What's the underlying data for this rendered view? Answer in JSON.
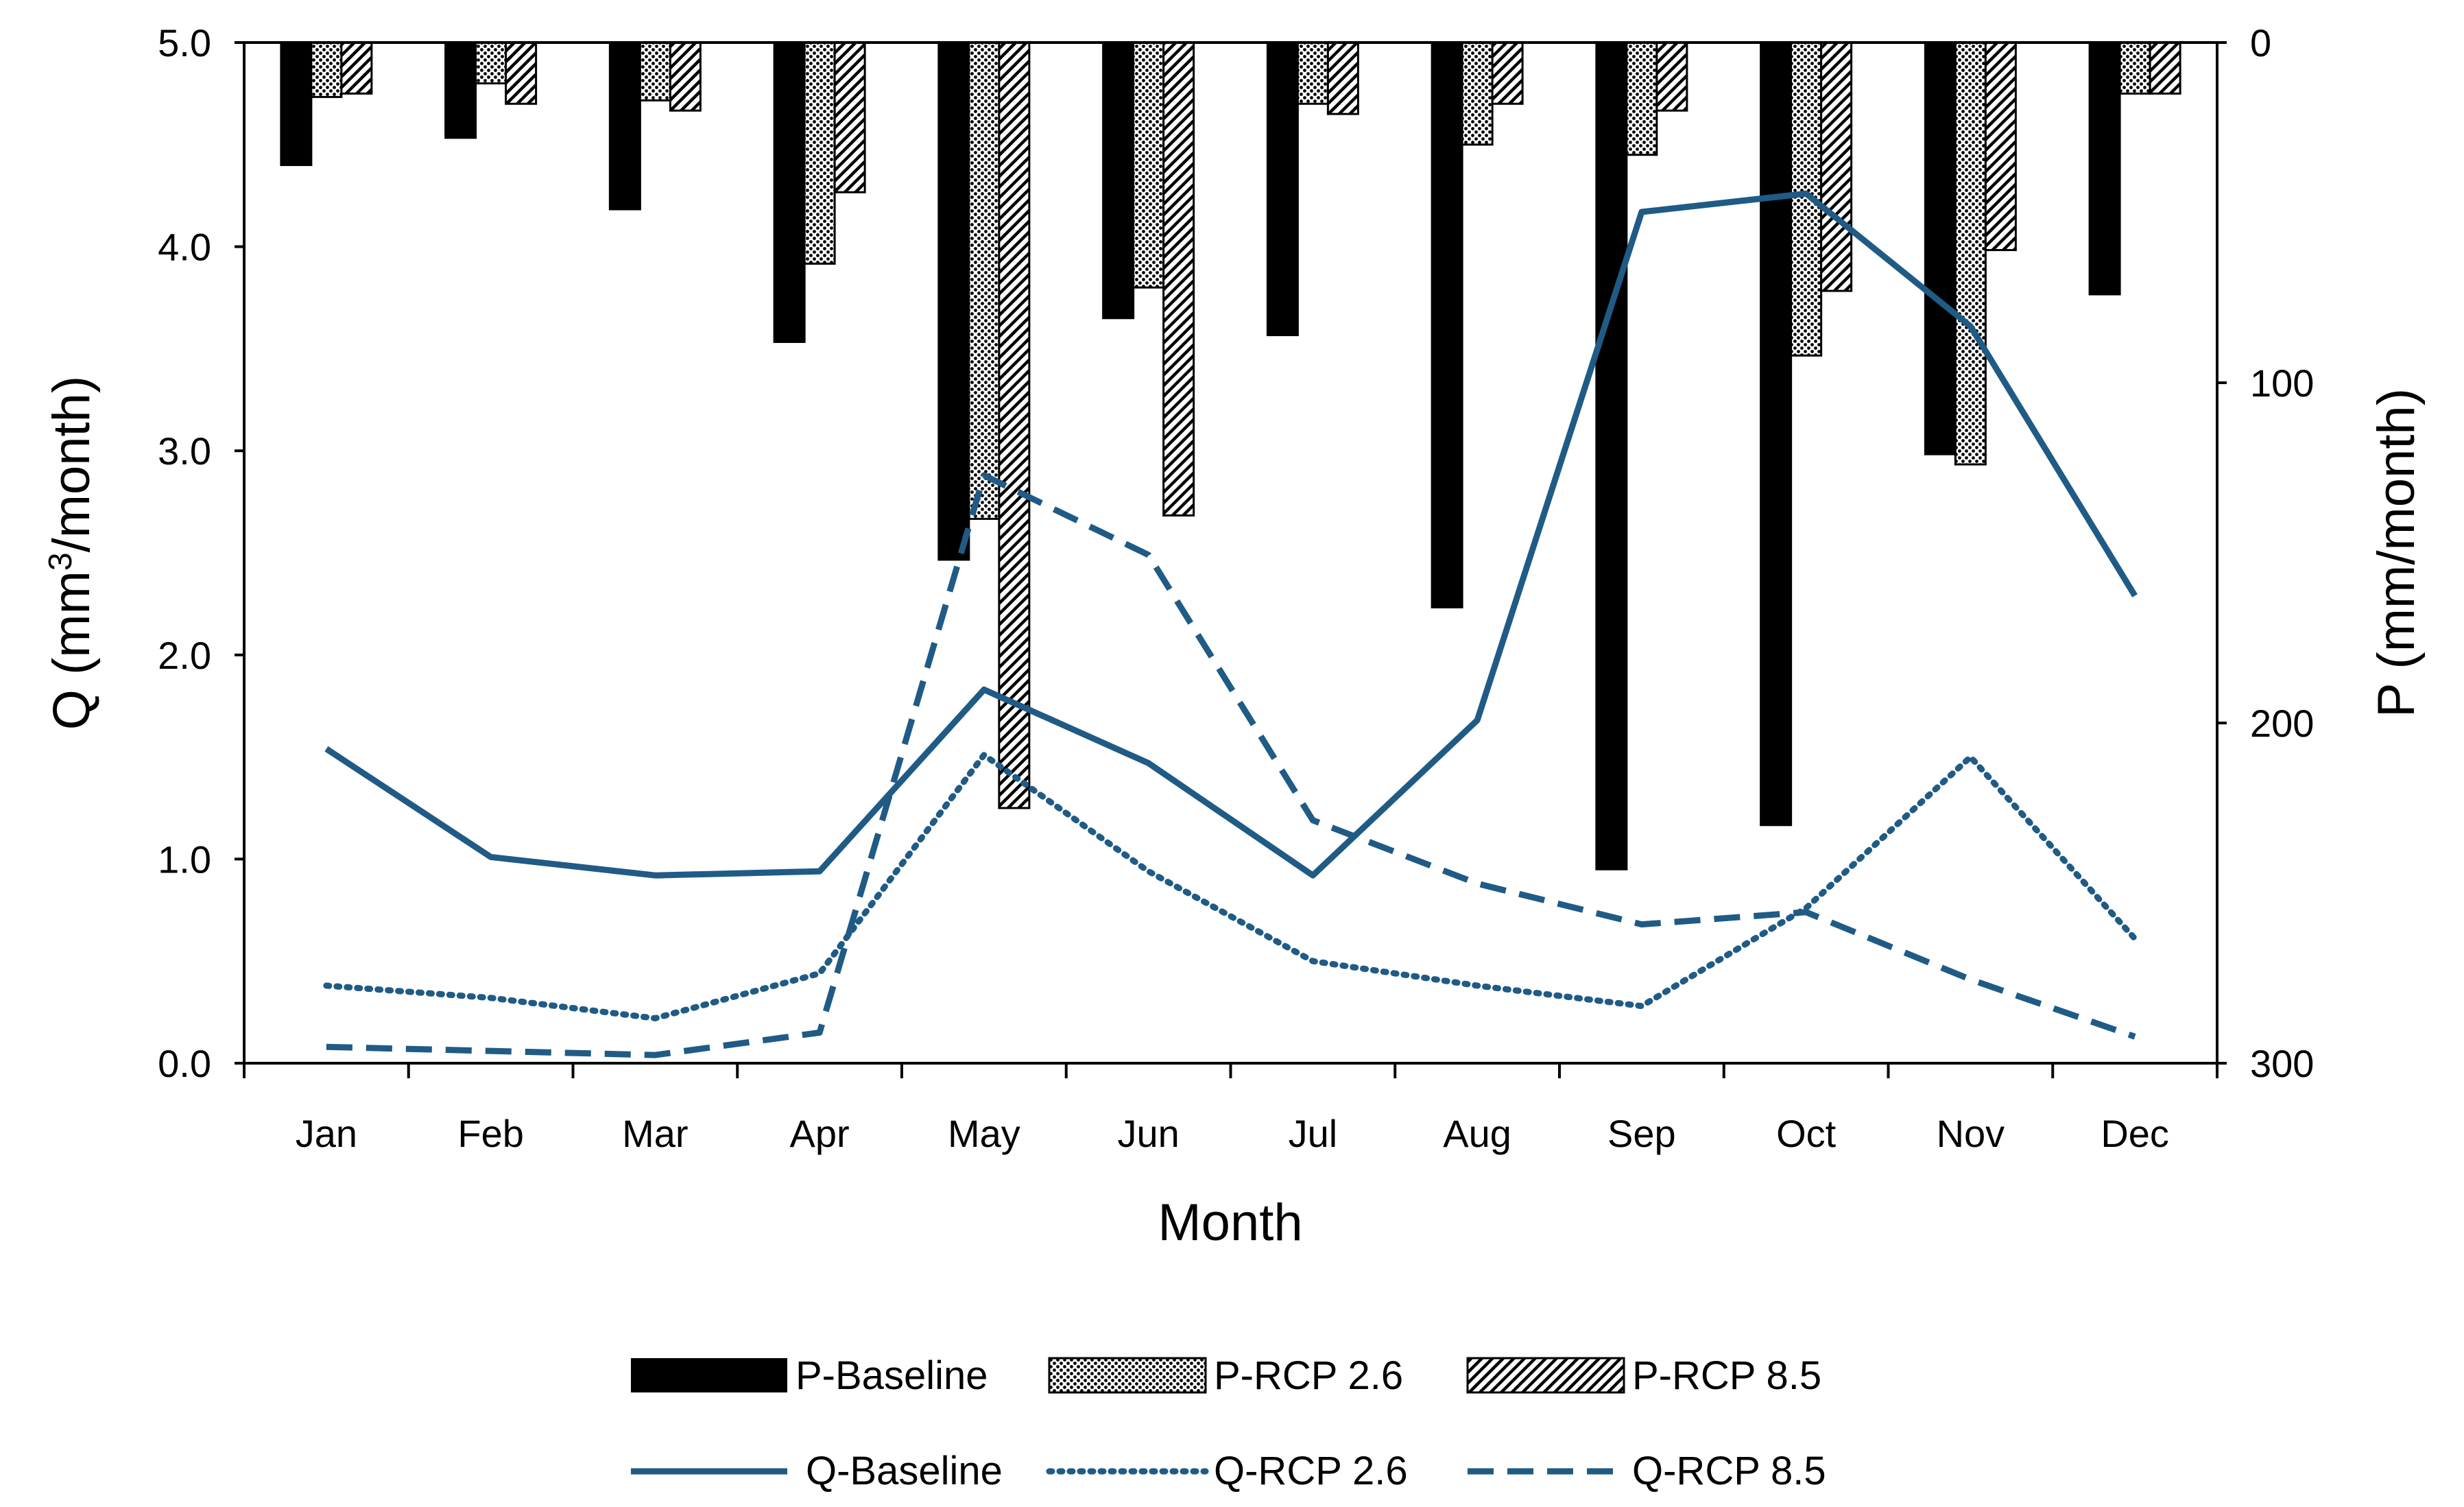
{
  "chart_data": {
    "type": "bar+line (dual axis)",
    "categories": [
      "Jan",
      "Feb",
      "Mar",
      "Apr",
      "May",
      "Jun",
      "Jul",
      "Aug",
      "Sep",
      "Oct",
      "Nov",
      "Dec"
    ],
    "xlabel": "Month",
    "ylabel_left": "Q (mm",
    "ylabel_left_sup": "3",
    "ylabel_left_tail": "/month)",
    "ylabel_right": "P (mm/month)",
    "ylim_left": [
      0,
      5
    ],
    "yticks_left": [
      "0.0",
      "1.0",
      "2.0",
      "3.0",
      "4.0",
      "5.0"
    ],
    "ylim_right": [
      0,
      300
    ],
    "yticks_right": [
      "0",
      "100",
      "200",
      "300"
    ],
    "right_axis_inverted": true,
    "bar_series": [
      {
        "name": "P-Baseline",
        "pattern": "solid",
        "values": [
          36,
          28,
          49,
          88,
          152,
          81,
          86,
          166,
          243,
          230,
          121,
          74
        ]
      },
      {
        "name": "P-RCP 2.6",
        "pattern": "dots",
        "values": [
          16,
          12,
          17,
          65,
          140,
          72,
          18,
          30,
          33,
          92,
          124,
          15
        ]
      },
      {
        "name": "P-RCP 8.5",
        "pattern": "hatch",
        "values": [
          15,
          18,
          20,
          44,
          225,
          139,
          21,
          18,
          20,
          73,
          61,
          15
        ]
      }
    ],
    "line_series": [
      {
        "name": "Q-Baseline",
        "style": "solid",
        "values": [
          1.54,
          1.01,
          0.92,
          0.94,
          1.83,
          1.47,
          0.92,
          1.68,
          4.17,
          4.26,
          3.61,
          2.29
        ]
      },
      {
        "name": "Q-RCP 2.6",
        "style": "dotted",
        "values": [
          0.38,
          0.32,
          0.22,
          0.44,
          1.51,
          0.94,
          0.5,
          0.38,
          0.28,
          0.76,
          1.5,
          0.61
        ]
      },
      {
        "name": "Q-RCP 8.5",
        "style": "dashed",
        "values": [
          0.08,
          0.06,
          0.04,
          0.15,
          2.88,
          2.49,
          1.19,
          0.88,
          0.68,
          0.74,
          0.41,
          0.13
        ]
      }
    ],
    "colors": {
      "bar": "#000000",
      "line": "#1f5b85"
    },
    "legend_placement": "bottom-center"
  }
}
